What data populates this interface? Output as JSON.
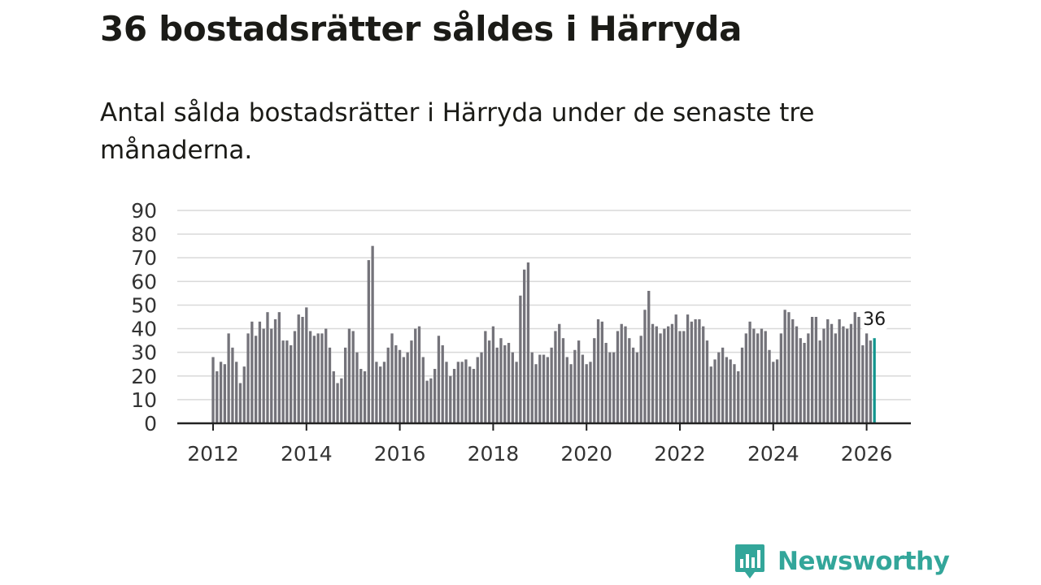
{
  "title": "36 bostadsrätter såldes i Härryda",
  "subtitle": "Antal sålda bostadsrätter i Härryda under de senaste tre månaderna.",
  "brand": {
    "name": "Newsworthy",
    "color": "#33a69a",
    "icon": "newsworthy-bar-chart-icon"
  },
  "colors": {
    "bar": "#74737a",
    "highlight": "#12958e",
    "grid": "#d9d9d9",
    "axis": "#222222"
  },
  "chart_data": {
    "type": "bar",
    "title": "36 bostadsrätter såldes i Härryda",
    "xlabel": "",
    "ylabel": "",
    "ylim": [
      0,
      90
    ],
    "yticks": [
      0,
      10,
      20,
      30,
      40,
      50,
      60,
      70,
      80,
      90
    ],
    "xticks": [
      "2012",
      "2014",
      "2016",
      "2018",
      "2020",
      "2022",
      "2024",
      "2026"
    ],
    "start": "2012-01",
    "grid": true,
    "highlight_label": "36",
    "series": [
      {
        "name": "Antal sålda bostadsrätter",
        "values": [
          28,
          22,
          26,
          25,
          38,
          32,
          26,
          17,
          24,
          38,
          43,
          37,
          43,
          40,
          47,
          40,
          44,
          47,
          35,
          35,
          33,
          39,
          46,
          45,
          49,
          39,
          37,
          38,
          38,
          40,
          32,
          22,
          17,
          19,
          32,
          40,
          39,
          30,
          23,
          22,
          69,
          75,
          26,
          24,
          26,
          32,
          38,
          33,
          31,
          28,
          30,
          35,
          40,
          41,
          28,
          18,
          19,
          23,
          37,
          33,
          26,
          20,
          23,
          26,
          26,
          27,
          24,
          23,
          28,
          30,
          39,
          35,
          41,
          32,
          36,
          33,
          34,
          30,
          26,
          54,
          65,
          68,
          30,
          25,
          29,
          29,
          28,
          32,
          39,
          42,
          36,
          28,
          25,
          31,
          35,
          29,
          25,
          26,
          36,
          44,
          43,
          34,
          30,
          30,
          39,
          42,
          41,
          36,
          32,
          30,
          37,
          48,
          56,
          42,
          41,
          38,
          40,
          41,
          42,
          46,
          39,
          39,
          46,
          43,
          44,
          44,
          41,
          35,
          24,
          27,
          30,
          32,
          28,
          27,
          25,
          22,
          32,
          38,
          43,
          40,
          38,
          40,
          39,
          31,
          26,
          27,
          38,
          48,
          47,
          44,
          41,
          36,
          34,
          38,
          45,
          45,
          35,
          40,
          44,
          42,
          38,
          44,
          41,
          40,
          42,
          47,
          45,
          33,
          38,
          35,
          36
        ]
      }
    ]
  }
}
